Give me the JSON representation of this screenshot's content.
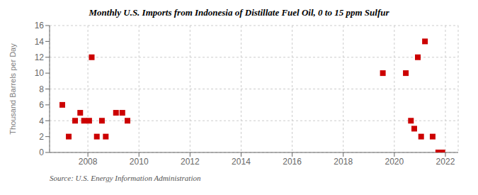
{
  "chart_data": {
    "type": "scatter",
    "title": "Monthly U.S. Imports from Indonesia of Distillate Fuel Oil, 0 to 15 ppm Sulfur",
    "ylabel": "Thousand Barrels per Day",
    "source": "Source: U.S. Energy Information Administration",
    "x": [
      2007.0,
      2007.25,
      2007.5,
      2007.7,
      2007.85,
      2008.05,
      2008.15,
      2008.35,
      2008.55,
      2008.7,
      2009.1,
      2009.35,
      2009.55,
      2019.55,
      2020.45,
      2020.65,
      2020.78,
      2020.92,
      2021.05,
      2021.2,
      2021.5,
      2021.72,
      2021.88
    ],
    "values": [
      6,
      2,
      4,
      5,
      4,
      4,
      12,
      2,
      4,
      2,
      5,
      5,
      4,
      10,
      10,
      4,
      3,
      12,
      2,
      14,
      2,
      0,
      0
    ],
    "color": "#cc0000",
    "marker": "square",
    "xlim": [
      2006.5,
      2022.5
    ],
    "xticks": [
      2008,
      2010,
      2012,
      2014,
      2016,
      2018,
      2020,
      2022
    ],
    "ylim": [
      0,
      16
    ],
    "yticks": [
      0,
      2,
      4,
      6,
      8,
      10,
      12,
      14,
      16
    ],
    "grid": true
  }
}
